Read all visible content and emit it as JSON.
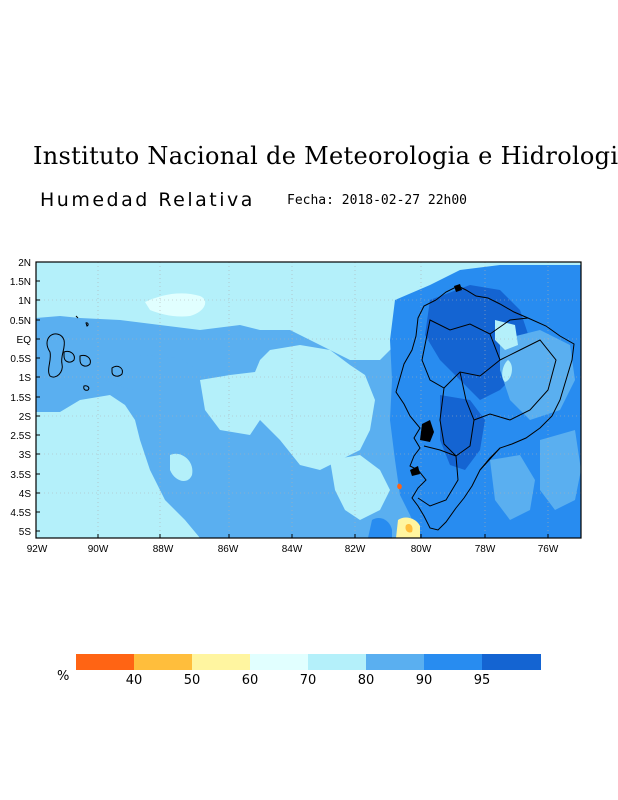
{
  "header": {
    "title": "Instituto Nacional de Meteorologia e Hidrologia",
    "variable": "Humedad Relativa",
    "date": "Fecha: 2018-02-27 22h00"
  },
  "map": {
    "lat_labels": [
      "2N",
      "1.5N",
      "1N",
      "0.5N",
      "EQ",
      "0.5S",
      "1S",
      "1.5S",
      "2S",
      "2.5S",
      "3S",
      "3.5S",
      "4S",
      "4.5S",
      "5S"
    ],
    "lon_labels": [
      "92W",
      "90W",
      "88W",
      "86W",
      "84W",
      "82W",
      "80W",
      "78W",
      "76W"
    ]
  },
  "colorbar": {
    "unit": "%",
    "colors": [
      "#ff6414",
      "#ffbe3c",
      "#fff5a0",
      "#e1ffff",
      "#b4f0fa",
      "#5aaff0",
      "#288cf0",
      "#1464d2"
    ],
    "labels": [
      "40",
      "50",
      "60",
      "70",
      "80",
      "90",
      "95"
    ]
  }
}
